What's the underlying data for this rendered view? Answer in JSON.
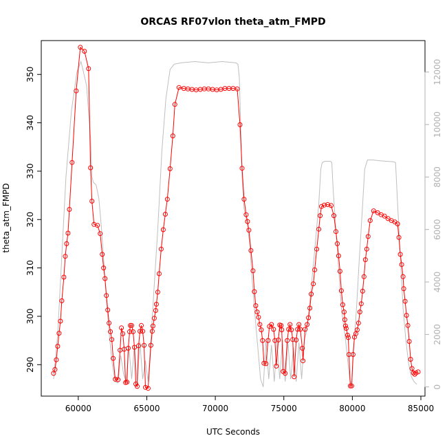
{
  "chart_data": {
    "type": "line",
    "title": "ORCAS RF07vlon theta_atm_FMPD",
    "xlabel": "UTC Seconds",
    "ylabel": "theta_atm_FMPD",
    "xlim": [
      57300,
      85300
    ],
    "ylim": [
      283.5,
      357.0
    ],
    "y2lim": [
      -350,
      13200
    ],
    "x_ticks": [
      60000,
      65000,
      70000,
      75000,
      80000,
      85000
    ],
    "y_ticks": [
      290,
      300,
      310,
      320,
      330,
      340,
      350
    ],
    "y2_ticks": [
      0,
      2000,
      4000,
      6000,
      8000,
      10000,
      12000
    ],
    "grid": false,
    "series": [
      {
        "role": "primary",
        "color": "#ff0000",
        "marker": "circle",
        "points": [
          [
            58200,
            288.2
          ],
          [
            58300,
            289.0
          ],
          [
            58400,
            291.0
          ],
          [
            58500,
            293.8
          ],
          [
            58600,
            296.5
          ],
          [
            58700,
            299.0
          ],
          [
            58800,
            303.2
          ],
          [
            58950,
            308.1
          ],
          [
            59050,
            312.4
          ],
          [
            59150,
            315.0
          ],
          [
            59250,
            317.2
          ],
          [
            59350,
            322.1
          ],
          [
            59550,
            331.8
          ],
          [
            59850,
            346.6
          ],
          [
            60150,
            355.6
          ],
          [
            60450,
            354.8
          ],
          [
            60750,
            351.2
          ],
          [
            60900,
            330.7
          ],
          [
            61000,
            323.8
          ],
          [
            61150,
            319.0
          ],
          [
            61400,
            318.8
          ],
          [
            61600,
            317.1
          ],
          [
            61750,
            312.8
          ],
          [
            61850,
            310.0
          ],
          [
            61950,
            307.8
          ],
          [
            62050,
            304.3
          ],
          [
            62150,
            301.3
          ],
          [
            62250,
            298.6
          ],
          [
            62350,
            296.8
          ],
          [
            62450,
            295.2
          ],
          [
            62550,
            291.3
          ],
          [
            62700,
            287.0
          ],
          [
            62900,
            286.9
          ],
          [
            63050,
            293.0
          ],
          [
            63150,
            297.6
          ],
          [
            63250,
            296.4
          ],
          [
            63350,
            293.2
          ],
          [
            63450,
            286.3
          ],
          [
            63550,
            286.4
          ],
          [
            63650,
            293.4
          ],
          [
            63750,
            296.8
          ],
          [
            63800,
            298.1
          ],
          [
            63900,
            298.1
          ],
          [
            64000,
            296.8
          ],
          [
            64100,
            293.6
          ],
          [
            64200,
            286.0
          ],
          [
            64300,
            285.5
          ],
          [
            64400,
            293.9
          ],
          [
            64500,
            296.9
          ],
          [
            64600,
            298.1
          ],
          [
            64700,
            296.9
          ],
          [
            64800,
            294.0
          ],
          [
            64900,
            285.3
          ],
          [
            65100,
            285.1
          ],
          [
            65300,
            294.0
          ],
          [
            65400,
            296.9
          ],
          [
            65450,
            298.0
          ],
          [
            65550,
            299.6
          ],
          [
            65650,
            301.2
          ],
          [
            65700,
            302.5
          ],
          [
            65800,
            305.0
          ],
          [
            65900,
            308.8
          ],
          [
            66050,
            313.9
          ],
          [
            66200,
            317.9
          ],
          [
            66350,
            321.1
          ],
          [
            66500,
            324.2
          ],
          [
            66700,
            330.5
          ],
          [
            66900,
            337.3
          ],
          [
            67050,
            343.8
          ],
          [
            67350,
            347.3
          ],
          [
            67700,
            347.1
          ],
          [
            68000,
            347.0
          ],
          [
            68300,
            346.9
          ],
          [
            68600,
            346.8
          ],
          [
            68900,
            346.9
          ],
          [
            69200,
            347.0
          ],
          [
            69500,
            347.0
          ],
          [
            69800,
            346.9
          ],
          [
            70100,
            346.8
          ],
          [
            70400,
            346.9
          ],
          [
            70700,
            347.1
          ],
          [
            71000,
            347.1
          ],
          [
            71300,
            347.1
          ],
          [
            71600,
            347.0
          ],
          [
            71800,
            339.6
          ],
          [
            71950,
            330.6
          ],
          [
            72100,
            324.2
          ],
          [
            72250,
            321.0
          ],
          [
            72350,
            319.6
          ],
          [
            72450,
            317.8
          ],
          [
            72600,
            313.6
          ],
          [
            72750,
            309.4
          ],
          [
            72850,
            305.1
          ],
          [
            72950,
            302.2
          ],
          [
            73050,
            300.9
          ],
          [
            73150,
            299.8
          ],
          [
            73250,
            298.3
          ],
          [
            73350,
            297.2
          ],
          [
            73450,
            295.0
          ],
          [
            73550,
            290.3
          ],
          [
            73700,
            290.2
          ],
          [
            73850,
            295.0
          ],
          [
            73950,
            297.9
          ],
          [
            74100,
            298.3
          ],
          [
            74250,
            297.3
          ],
          [
            74350,
            295.0
          ],
          [
            74450,
            289.7
          ],
          [
            74600,
            295.1
          ],
          [
            74700,
            298.2
          ],
          [
            74800,
            298.1
          ],
          [
            74850,
            297.2
          ],
          [
            74950,
            288.6
          ],
          [
            75100,
            288.2
          ],
          [
            75250,
            295.0
          ],
          [
            75350,
            297.3
          ],
          [
            75450,
            298.3
          ],
          [
            75550,
            297.2
          ],
          [
            75650,
            295.2
          ],
          [
            75750,
            287.5
          ],
          [
            75900,
            295.1
          ],
          [
            76000,
            297.3
          ],
          [
            76100,
            298.3
          ],
          [
            76200,
            297.3
          ],
          [
            76350,
            293.4
          ],
          [
            76400,
            290.8
          ],
          [
            76550,
            297.3
          ],
          [
            76700,
            298.3
          ],
          [
            76800,
            299.7
          ],
          [
            76900,
            301.7
          ],
          [
            77000,
            304.6
          ],
          [
            77150,
            306.7
          ],
          [
            77250,
            309.6
          ],
          [
            77400,
            313.9
          ],
          [
            77550,
            318.0
          ],
          [
            77650,
            320.8
          ],
          [
            77750,
            322.7
          ],
          [
            77950,
            323.0
          ],
          [
            78200,
            323.1
          ],
          [
            78450,
            322.9
          ],
          [
            78650,
            320.8
          ],
          [
            78800,
            317.5
          ],
          [
            78900,
            315.0
          ],
          [
            79000,
            312.5
          ],
          [
            79100,
            309.3
          ],
          [
            79200,
            305.3
          ],
          [
            79300,
            302.4
          ],
          [
            79400,
            300.9
          ],
          [
            79450,
            299.3
          ],
          [
            79500,
            298.0
          ],
          [
            79550,
            297.5
          ],
          [
            79650,
            296.1
          ],
          [
            79700,
            295.6
          ],
          [
            79750,
            292.1
          ],
          [
            79850,
            285.6
          ],
          [
            79950,
            285.6
          ],
          [
            80050,
            292.1
          ],
          [
            80150,
            295.7
          ],
          [
            80250,
            296.4
          ],
          [
            80350,
            297.2
          ],
          [
            80450,
            298.6
          ],
          [
            80550,
            300.9
          ],
          [
            80650,
            302.6
          ],
          [
            80750,
            305.2
          ],
          [
            80850,
            308.2
          ],
          [
            80950,
            311.7
          ],
          [
            81050,
            313.9
          ],
          [
            81150,
            316.5
          ],
          [
            81300,
            319.8
          ],
          [
            81550,
            321.8
          ],
          [
            81850,
            321.4
          ],
          [
            82100,
            321.0
          ],
          [
            82350,
            320.7
          ],
          [
            82600,
            320.2
          ],
          [
            82850,
            319.8
          ],
          [
            83100,
            319.5
          ],
          [
            83300,
            319.1
          ],
          [
            83400,
            316.3
          ],
          [
            83500,
            312.8
          ],
          [
            83600,
            310.7
          ],
          [
            83700,
            308.2
          ],
          [
            83750,
            305.7
          ],
          [
            83850,
            303.1
          ],
          [
            83950,
            300.2
          ],
          [
            84050,
            298.1
          ],
          [
            84150,
            294.8
          ],
          [
            84250,
            291.1
          ],
          [
            84350,
            289.2
          ],
          [
            84450,
            288.3
          ],
          [
            84550,
            288.0
          ],
          [
            84650,
            288.3
          ],
          [
            84800,
            288.5
          ]
        ]
      },
      {
        "role": "secondary-axis",
        "color": "#bebebe",
        "marker": "none",
        "points": [
          [
            58200,
            300
          ],
          [
            58500,
            2000
          ],
          [
            58800,
            5000
          ],
          [
            59100,
            8000
          ],
          [
            59500,
            10500
          ],
          [
            59900,
            12000
          ],
          [
            60200,
            12400
          ],
          [
            60600,
            11500
          ],
          [
            60900,
            9500
          ],
          [
            61000,
            8000
          ],
          [
            61100,
            7800
          ],
          [
            61300,
            7700
          ],
          [
            61500,
            7200
          ],
          [
            61700,
            6000
          ],
          [
            61900,
            4500
          ],
          [
            62100,
            3000
          ],
          [
            62300,
            1800
          ],
          [
            62500,
            800
          ],
          [
            62700,
            200
          ],
          [
            62900,
            150
          ],
          [
            63100,
            1200
          ],
          [
            63300,
            500
          ],
          [
            63500,
            200
          ],
          [
            63700,
            1500
          ],
          [
            63900,
            300
          ],
          [
            64100,
            1600
          ],
          [
            64300,
            200
          ],
          [
            64500,
            1700
          ],
          [
            64700,
            300
          ],
          [
            64900,
            1000
          ],
          [
            65100,
            200
          ],
          [
            65300,
            1800
          ],
          [
            65500,
            3500
          ],
          [
            65800,
            6000
          ],
          [
            66100,
            9000
          ],
          [
            66400,
            11000
          ],
          [
            66700,
            12100
          ],
          [
            67000,
            12300
          ],
          [
            67500,
            12350
          ],
          [
            68500,
            12400
          ],
          [
            69500,
            12350
          ],
          [
            70500,
            12400
          ],
          [
            71500,
            12350
          ],
          [
            71650,
            12300
          ],
          [
            71750,
            11800
          ],
          [
            71850,
            10000
          ],
          [
            71950,
            8000
          ],
          [
            72100,
            6800
          ],
          [
            72300,
            6300
          ],
          [
            72500,
            5500
          ],
          [
            72700,
            4000
          ],
          [
            72900,
            2700
          ],
          [
            73100,
            1500
          ],
          [
            73300,
            300
          ],
          [
            73500,
            0
          ],
          [
            73700,
            1800
          ],
          [
            73900,
            300
          ],
          [
            74100,
            1600
          ],
          [
            74300,
            200
          ],
          [
            74500,
            1700
          ],
          [
            74700,
            300
          ],
          [
            74900,
            1800
          ],
          [
            75100,
            200
          ],
          [
            75300,
            1700
          ],
          [
            75500,
            300
          ],
          [
            75700,
            1500
          ],
          [
            75900,
            200
          ],
          [
            76100,
            1700
          ],
          [
            76300,
            300
          ],
          [
            76500,
            1800
          ],
          [
            76700,
            2200
          ],
          [
            77000,
            3800
          ],
          [
            77300,
            5500
          ],
          [
            77550,
            7000
          ],
          [
            77700,
            8300
          ],
          [
            77800,
            8550
          ],
          [
            78000,
            8600
          ],
          [
            78400,
            8600
          ],
          [
            78500,
            8550
          ],
          [
            78600,
            7500
          ],
          [
            78800,
            6000
          ],
          [
            79000,
            4500
          ],
          [
            79200,
            3000
          ],
          [
            79500,
            1800
          ],
          [
            79800,
            300
          ],
          [
            79950,
            50
          ],
          [
            80100,
            1500
          ],
          [
            80300,
            3000
          ],
          [
            80500,
            4800
          ],
          [
            80700,
            6500
          ],
          [
            80900,
            8300
          ],
          [
            81100,
            8650
          ],
          [
            81500,
            8650
          ],
          [
            82000,
            8620
          ],
          [
            82500,
            8600
          ],
          [
            83000,
            8580
          ],
          [
            83150,
            8550
          ],
          [
            83300,
            7000
          ],
          [
            83500,
            5000
          ],
          [
            83700,
            3000
          ],
          [
            83900,
            1800
          ],
          [
            84100,
            900
          ],
          [
            84300,
            400
          ],
          [
            84500,
            200
          ],
          [
            84700,
            100
          ]
        ]
      }
    ]
  }
}
